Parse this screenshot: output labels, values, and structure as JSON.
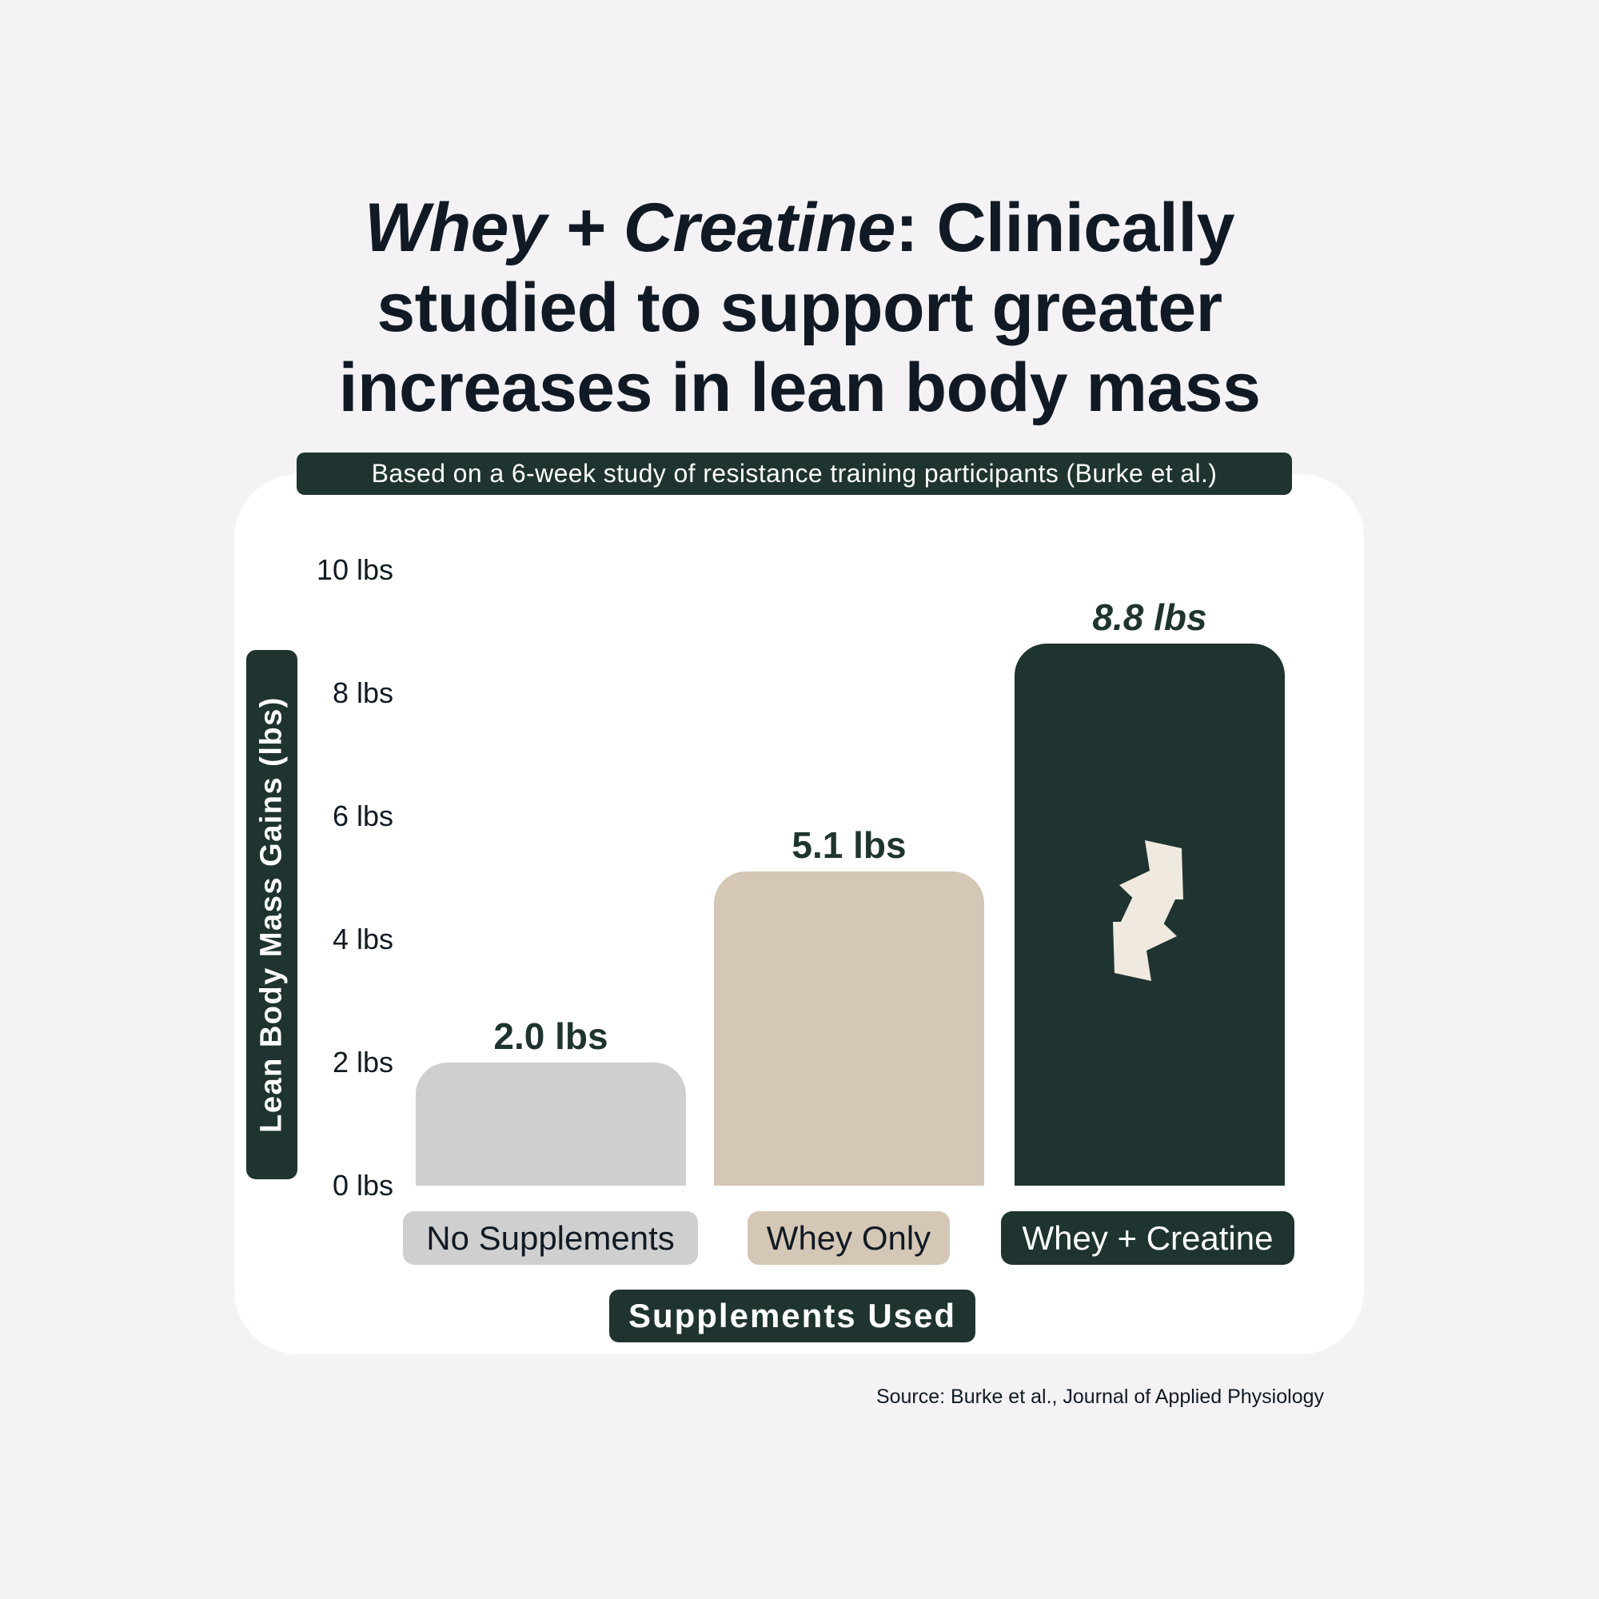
{
  "chart_data": {
    "type": "bar",
    "title_italic": "Whey + Creatine",
    "title_rest": ": Clinically studied to support greater increases in lean body mass",
    "subtitle": "Based on a 6-week study of resistance training participants (Burke et al.)",
    "xlabel": "Supplements Used",
    "ylabel": "Lean Body Mass Gains (lbs)",
    "ylim": [
      0,
      10
    ],
    "yticks": [
      "0 lbs",
      "2 lbs",
      "4 lbs",
      "6 lbs",
      "8 lbs",
      "10 lbs"
    ],
    "categories": [
      "No Supplements",
      "Whey Only",
      "Whey + Creatine"
    ],
    "values": [
      2.0,
      5.1,
      8.8
    ],
    "value_labels": [
      "2.0 lbs",
      "5.1 lbs",
      "8.8 lbs"
    ],
    "colors": [
      "#cfcfcf",
      "#d4c7b5",
      "#1f3430"
    ],
    "label_text_colors": [
      "#111a24",
      "#111a24",
      "#ffffff"
    ],
    "grid": false,
    "legend": "none",
    "source": "Source: Burke et al., Journal of Applied Physiology",
    "bar_icon": "arrows-logo-icon"
  }
}
